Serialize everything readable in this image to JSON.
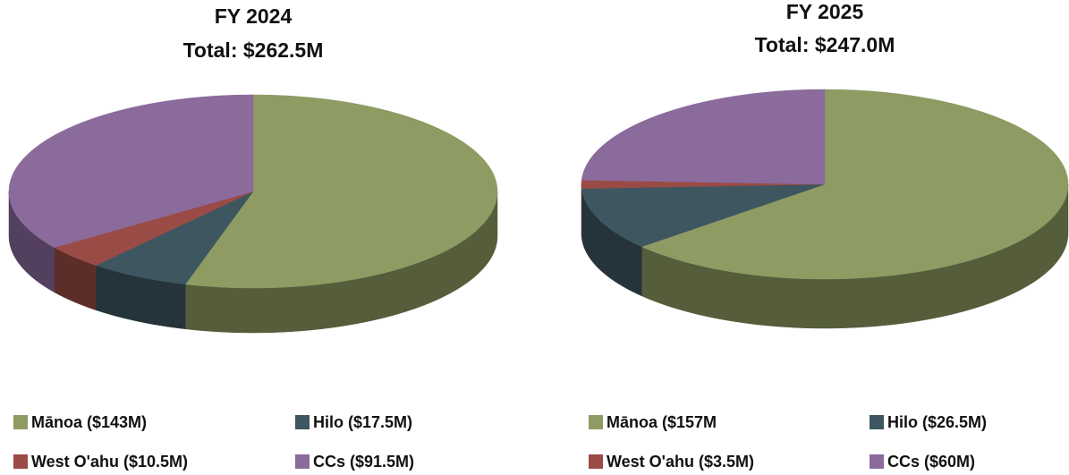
{
  "chart_data": [
    {
      "type": "pie3d",
      "title": "FY 2024",
      "subtitle": "Total: $262.5M",
      "categories": [
        "Mānoa ($143M)",
        "Hilo ($17.5M)",
        "West O'ahu ($10.5M)",
        "CCs ($91.5M)"
      ],
      "values": [
        143,
        17.5,
        10.5,
        91.5
      ],
      "colors": [
        "#8e9b63",
        "#3e5660",
        "#9a4b45",
        "#8b6a9c"
      ]
    },
    {
      "type": "pie3d",
      "title": "FY 2025",
      "subtitle": "Total: $247.0M",
      "categories": [
        "Mānoa ($157M",
        "Hilo ($26.5M)",
        "West O'ahu ($3.5M)",
        "CCs ($60M)"
      ],
      "values": [
        157,
        26.5,
        3.5,
        60
      ],
      "colors": [
        "#8e9b63",
        "#3e5660",
        "#9a4b45",
        "#8b6a9c"
      ]
    }
  ]
}
